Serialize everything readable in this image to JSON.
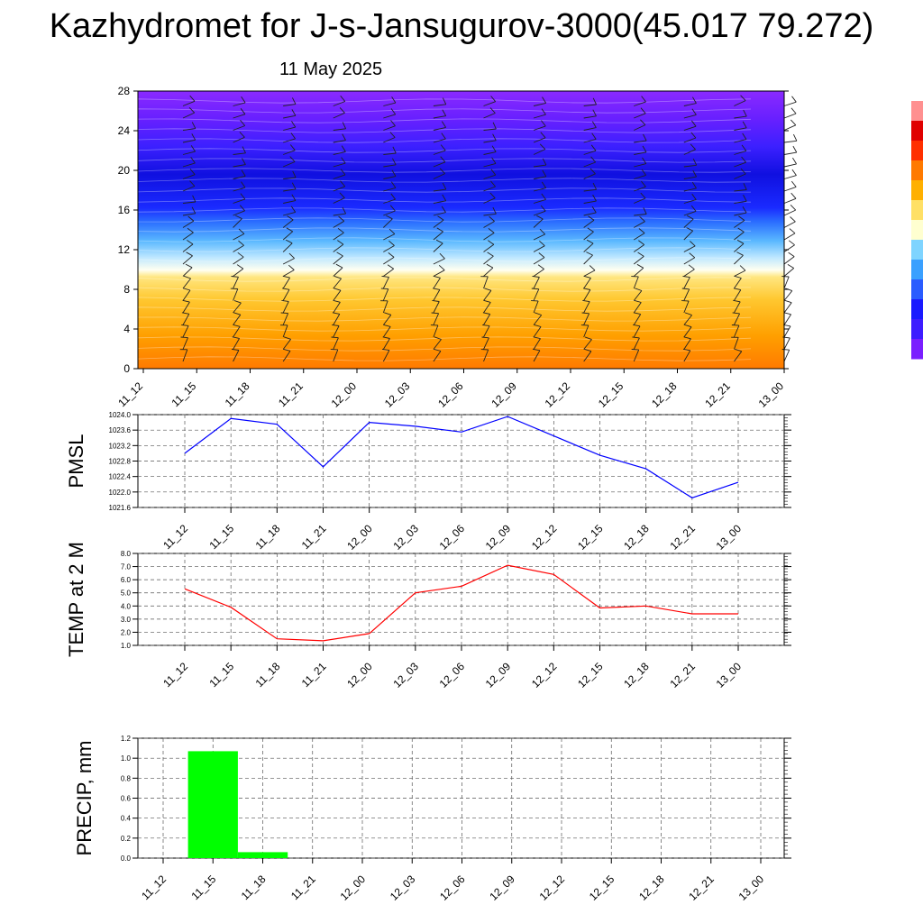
{
  "title": "Kazhydromet for J-s-Jansugurov-3000(45.017 79.272)",
  "date": "11 May 2025",
  "time_labels": [
    "11_12",
    "11_15",
    "11_18",
    "11_21",
    "12_00",
    "12_03",
    "12_06",
    "12_09",
    "12_12",
    "12_15",
    "12_18",
    "12_21",
    "13_00"
  ],
  "chart_data": [
    {
      "type": "heatmap",
      "name": "vertical cross-section",
      "y_ticks": [
        "0",
        "4",
        "8",
        "12",
        "16",
        "20",
        "24",
        "28"
      ],
      "ylim": [
        0,
        28
      ],
      "colorbar_colors": [
        "#7a1fff",
        "#3e1dff",
        "#1a1aff",
        "#2a5cff",
        "#3aa0ff",
        "#7fd4ff",
        "#ffffd0",
        "#ffe066",
        "#ffb000",
        "#ff7a00",
        "#ff3000",
        "#e00000",
        "#ff9090"
      ],
      "layers": [
        {
          "from": 0,
          "to": 10,
          "color": "orange"
        },
        {
          "from": 10,
          "to": 16,
          "color": "light blue"
        },
        {
          "from": 16,
          "to": 22,
          "color": "blue"
        },
        {
          "from": 22,
          "to": 28,
          "color": "violet"
        }
      ],
      "wind_barbs": true
    },
    {
      "type": "line",
      "ylabel": "PMSL",
      "y_ticks": [
        "1021.6",
        "1022.0",
        "1022.4",
        "1022.8",
        "1023.2",
        "1023.6",
        "1024.0"
      ],
      "ylim": [
        1021.6,
        1024.0
      ],
      "color": "#0000ff",
      "values": [
        1023.0,
        1023.9,
        1023.75,
        1022.65,
        1023.8,
        1023.7,
        1023.55,
        1023.95,
        1023.45,
        1022.95,
        1022.6,
        1021.85,
        1022.25
      ]
    },
    {
      "type": "line",
      "ylabel": "TEMP at 2 M",
      "y_ticks": [
        "1.0",
        "2.0",
        "3.0",
        "4.0",
        "5.0",
        "6.0",
        "7.0",
        "8.0"
      ],
      "ylim": [
        1.0,
        8.0
      ],
      "color": "#ff0000",
      "values": [
        5.3,
        3.9,
        1.5,
        1.35,
        1.9,
        5.0,
        5.5,
        7.1,
        6.4,
        3.85,
        4.0,
        3.4,
        3.4
      ]
    },
    {
      "type": "bar",
      "ylabel": "PRECIP, mm",
      "y_ticks": [
        "0.0",
        "0.2",
        "0.4",
        "0.6",
        "0.8",
        "1.0",
        "1.2"
      ],
      "ylim": [
        0,
        1.2
      ],
      "color": "#00ff00",
      "values": [
        0,
        1.07,
        0.06,
        0,
        0,
        0,
        0,
        0,
        0,
        0,
        0,
        0,
        0
      ]
    }
  ]
}
